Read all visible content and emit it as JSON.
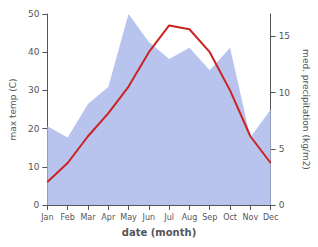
{
  "chart_data": {
    "type": "line",
    "categories": [
      "Jan",
      "Feb",
      "Mar",
      "Apr",
      "May",
      "Jun",
      "Jul",
      "Aug",
      "Sep",
      "Oct",
      "Nov",
      "Dec"
    ],
    "xlabel": "date (month)",
    "ylabel": "max temp (C)",
    "y2label": "med. precipitation (kg/m2)",
    "ylim": [
      0,
      50
    ],
    "yticks": [
      0,
      10,
      20,
      30,
      40,
      50
    ],
    "y2lim": [
      0,
      17
    ],
    "y2ticks": [
      0,
      5,
      10,
      15
    ],
    "grid": false,
    "series": [
      {
        "type": "area",
        "axis": "y2",
        "color": "#b8c4ee",
        "values": [
          7,
          6,
          9,
          10.5,
          17,
          14.5,
          13,
          14,
          12,
          14,
          6,
          8.5
        ]
      },
      {
        "type": "line",
        "color": "#cc2222",
        "values": [
          6,
          11,
          18,
          24,
          31,
          40,
          47,
          46,
          40,
          30,
          18,
          11
        ]
      }
    ]
  }
}
